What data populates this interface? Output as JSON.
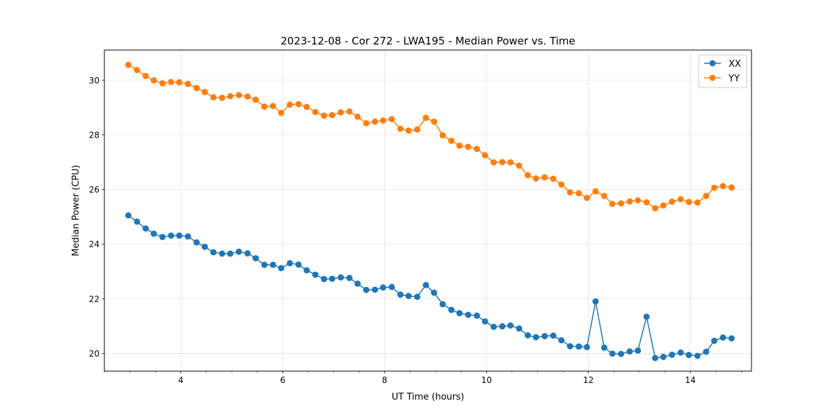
{
  "chart_data": {
    "type": "line",
    "title": "2023-12-08 - Cor 272 - LWA195 - Median Power vs. Time",
    "xlabel": "UT Time (hours)",
    "ylabel": "Median Power (CPU)",
    "xlim": [
      2.5,
      15.2
    ],
    "ylim": [
      19.35,
      31.1
    ],
    "xticks": [
      4,
      6,
      8,
      10,
      12,
      14
    ],
    "yticks": [
      20,
      22,
      24,
      26,
      28,
      30
    ],
    "grid": true,
    "legend_position": "top-right",
    "x": [
      2.97,
      3.14,
      3.31,
      3.47,
      3.64,
      3.81,
      3.97,
      4.14,
      4.31,
      4.47,
      4.64,
      4.81,
      4.97,
      5.14,
      5.31,
      5.47,
      5.64,
      5.81,
      5.97,
      6.14,
      6.31,
      6.47,
      6.64,
      6.81,
      6.97,
      7.14,
      7.31,
      7.47,
      7.64,
      7.81,
      7.97,
      8.14,
      8.31,
      8.47,
      8.64,
      8.81,
      8.97,
      9.14,
      9.31,
      9.47,
      9.64,
      9.81,
      9.97,
      10.14,
      10.31,
      10.47,
      10.64,
      10.81,
      10.97,
      11.14,
      11.31,
      11.47,
      11.64,
      11.81,
      11.97,
      12.14,
      12.31,
      12.47,
      12.64,
      12.81,
      12.97,
      13.14,
      13.31,
      13.47,
      13.64,
      13.81,
      13.97,
      14.14,
      14.31,
      14.47,
      14.64,
      14.81
    ],
    "series": [
      {
        "name": "XX",
        "color": "#1f77b4",
        "values": [
          25.05,
          24.82,
          24.57,
          24.38,
          24.26,
          24.31,
          24.31,
          24.28,
          24.06,
          23.9,
          23.7,
          23.65,
          23.65,
          23.72,
          23.66,
          23.48,
          23.24,
          23.24,
          23.12,
          23.3,
          23.25,
          23.04,
          22.88,
          22.72,
          22.73,
          22.78,
          22.76,
          22.55,
          22.32,
          22.33,
          22.41,
          22.43,
          22.15,
          22.1,
          22.07,
          22.5,
          22.22,
          21.8,
          21.59,
          21.47,
          21.41,
          21.38,
          21.17,
          20.97,
          20.99,
          21.02,
          20.91,
          20.66,
          20.59,
          20.63,
          20.65,
          20.48,
          20.26,
          20.25,
          20.23,
          21.9,
          20.21,
          19.99,
          19.98,
          20.07,
          20.1,
          21.34,
          19.83,
          19.87,
          19.95,
          20.03,
          19.94,
          19.91,
          20.06,
          20.46,
          20.58,
          20.55
        ]
      },
      {
        "name": "YY",
        "color": "#ff7f0e",
        "values": [
          30.56,
          30.37,
          30.15,
          29.99,
          29.88,
          29.93,
          29.92,
          29.86,
          29.71,
          29.56,
          29.37,
          29.35,
          29.41,
          29.45,
          29.4,
          29.28,
          29.03,
          29.05,
          28.8,
          29.1,
          29.12,
          29.02,
          28.83,
          28.7,
          28.72,
          28.82,
          28.85,
          28.66,
          28.42,
          28.48,
          28.52,
          28.57,
          28.22,
          28.15,
          28.19,
          28.62,
          28.48,
          27.98,
          27.78,
          27.6,
          27.56,
          27.48,
          27.25,
          26.99,
          27.0,
          26.99,
          26.87,
          26.52,
          26.4,
          26.44,
          26.39,
          26.18,
          25.89,
          25.86,
          25.69,
          25.93,
          25.76,
          25.47,
          25.49,
          25.56,
          25.6,
          25.53,
          25.31,
          25.41,
          25.55,
          25.64,
          25.54,
          25.52,
          25.76,
          26.06,
          26.12,
          26.07
        ]
      }
    ]
  }
}
